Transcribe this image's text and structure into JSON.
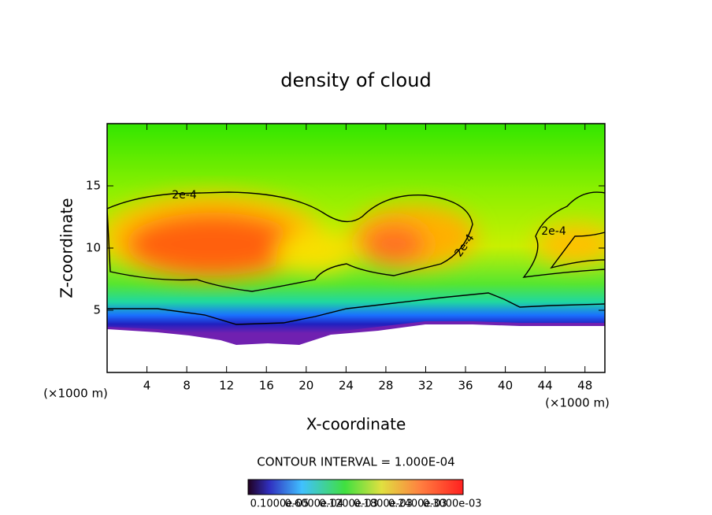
{
  "chart_data": {
    "type": "contour",
    "title": "density of cloud",
    "x_label": "X-coordinate",
    "y_label": "Z-coordinate",
    "x_unit_left": "(×1000 m)",
    "x_unit_right": "(×1000 m)",
    "xlim": [
      0,
      50
    ],
    "ylim": [
      0,
      20
    ],
    "xticks": [
      4,
      8,
      12,
      16,
      20,
      24,
      28,
      32,
      36,
      40,
      44,
      48
    ],
    "yticks": [
      5,
      10,
      15
    ],
    "contour_labels": [
      "2e-4",
      "2e-4",
      "2e-4"
    ],
    "contour_interval": "CONTOUR INTERVAL = 1.000E-04",
    "colorbar_labels": [
      "0.1000e-05",
      "0.6000e-04",
      "0.1200e-03",
      "0.1800e-03",
      "0.2400e-03",
      "0.3000e-03"
    ]
  }
}
